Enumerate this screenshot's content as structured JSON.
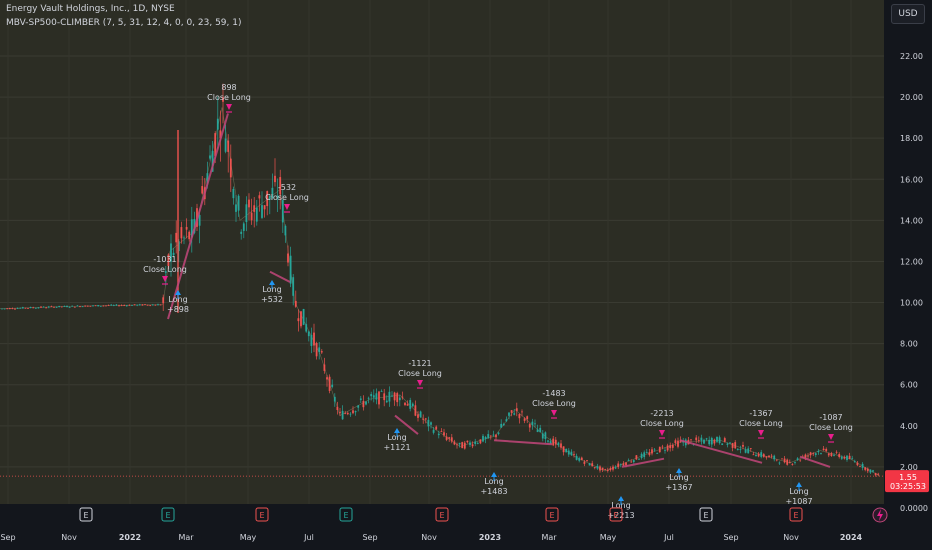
{
  "header": {
    "symbol_line": "Energy Vault Holdings, Inc., 1D, NYSE",
    "indicator_line": "MBV-SP500-CLIMBER (7, 5, 31, 12, 4, 0, 0, 23, 59, 1)"
  },
  "currency_button": "USD",
  "price_axis": {
    "ticks": [
      "22.00",
      "20.00",
      "18.00",
      "16.00",
      "14.00",
      "12.00",
      "10.00",
      "8.00",
      "6.00",
      "4.00",
      "2.00",
      "0.0000"
    ],
    "price_label": "1.55",
    "countdown_label": "03:25:53",
    "label_color": "#f23645"
  },
  "time_axis": {
    "ticks": [
      "Sep",
      "Nov",
      "2022",
      "Mar",
      "May",
      "Jul",
      "Sep",
      "Nov",
      "2023",
      "Mar",
      "May",
      "Jul",
      "Sep",
      "Nov",
      "2024"
    ]
  },
  "event_markers": [
    "E",
    "E",
    "E",
    "E",
    "E",
    "E",
    "E",
    "E",
    "E",
    "E"
  ],
  "trade_labels": [
    {
      "title": "898",
      "subtitle": "Close Long"
    },
    {
      "title": "-1031",
      "subtitle": "Close Long"
    },
    {
      "title": "Long",
      "subtitle": "+898"
    },
    {
      "title": "-532",
      "subtitle": "Close Long"
    },
    {
      "title": "Long",
      "subtitle": "+532"
    },
    {
      "title": "-1121",
      "subtitle": "Close Long"
    },
    {
      "title": "Long",
      "subtitle": "+1121"
    },
    {
      "title": "-1483",
      "subtitle": "Close Long"
    },
    {
      "title": "Long",
      "subtitle": "+1483"
    },
    {
      "title": "-2213",
      "subtitle": "Close Long"
    },
    {
      "title": "Long",
      "subtitle": "+2213"
    },
    {
      "title": "Long",
      "subtitle": "+1367"
    },
    {
      "title": "-1367",
      "subtitle": "Close Long"
    },
    {
      "title": "-1087",
      "subtitle": "Close Long"
    },
    {
      "title": "Long",
      "subtitle": "+1087"
    }
  ],
  "colors": {
    "background": "#2c2d24",
    "up": "#26a69a",
    "down": "#ef5350",
    "close_marker": "#e91e8c",
    "long_marker": "#2196f3",
    "text": "#d1d4dc"
  },
  "chart_data": {
    "type": "candlestick",
    "title": "Energy Vault Holdings, Inc., 1D, NYSE",
    "y_range": [
      0,
      22.5
    ],
    "price_series": [
      [
        "2021-09",
        9.7
      ],
      [
        "2021-10",
        9.75
      ],
      [
        "2021-11",
        9.8
      ],
      [
        "2021-12",
        9.85
      ],
      [
        "2022-01",
        9.9
      ],
      [
        "2022-01b",
        12.5
      ],
      [
        "2022-02",
        13.5
      ],
      [
        "2022-03",
        19.5
      ],
      [
        "2022-04",
        14.0
      ],
      [
        "2022-05",
        15.5
      ],
      [
        "2022-06",
        10.0
      ],
      [
        "2022-07",
        7.5
      ],
      [
        "2022-08",
        4.5
      ],
      [
        "2022-09",
        5.3
      ],
      [
        "2022-10",
        5.5
      ],
      [
        "2022-11",
        4.0
      ],
      [
        "2022-12",
        3.0
      ],
      [
        "2023-01",
        3.5
      ],
      [
        "2023-02",
        4.8
      ],
      [
        "2023-03",
        3.5
      ],
      [
        "2023-04",
        2.5
      ],
      [
        "2023-05",
        1.8
      ],
      [
        "2023-06",
        2.5
      ],
      [
        "2023-07",
        3.2
      ],
      [
        "2023-08",
        3.3
      ],
      [
        "2023-09",
        2.6
      ],
      [
        "2023-10",
        2.2
      ],
      [
        "2023-11",
        2.8
      ],
      [
        "2023-12",
        2.4
      ],
      [
        "2024-01",
        1.55
      ]
    ],
    "last_price": 1.55
  }
}
